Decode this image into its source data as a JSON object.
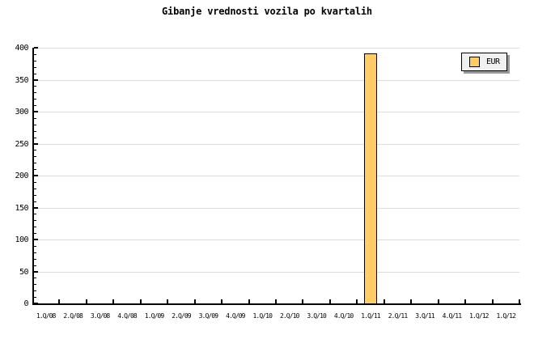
{
  "title": "Gibanje vrednosti vozila po kvartalih",
  "legend": {
    "label": "EUR"
  },
  "chart_data": {
    "type": "bar",
    "title": "Gibanje vrednosti vozila po kvartalih",
    "categories": [
      "1.Q/08",
      "2.Q/08",
      "3.Q/08",
      "4.Q/08",
      "1.Q/09",
      "2.Q/09",
      "3.Q/09",
      "4.Q/09",
      "1.Q/10",
      "2.Q/10",
      "3.Q/10",
      "4.Q/10",
      "1.Q/11",
      "2.Q/11",
      "3.Q/11",
      "4.Q/11",
      "1.Q/12",
      "1.Q/12"
    ],
    "series": [
      {
        "name": "EUR",
        "color": "#ffcc66",
        "values": [
          null,
          null,
          null,
          null,
          null,
          null,
          null,
          null,
          null,
          null,
          null,
          null,
          391,
          null,
          null,
          null,
          null,
          null
        ]
      }
    ],
    "xlabel": "",
    "ylabel": "",
    "ylim": [
      0,
      400
    ],
    "y_major_step": 50,
    "y_minor_step": 10,
    "grid": true,
    "legend_position": "top-right"
  },
  "colors": {
    "background": "#ffffff",
    "axis": "#000000",
    "grid": "#dcdcdc",
    "bar_fill": "#ffcc66",
    "bar_border": "#000000",
    "legend_bg": "#f0f0f0",
    "legend_shadow": "#999999"
  }
}
